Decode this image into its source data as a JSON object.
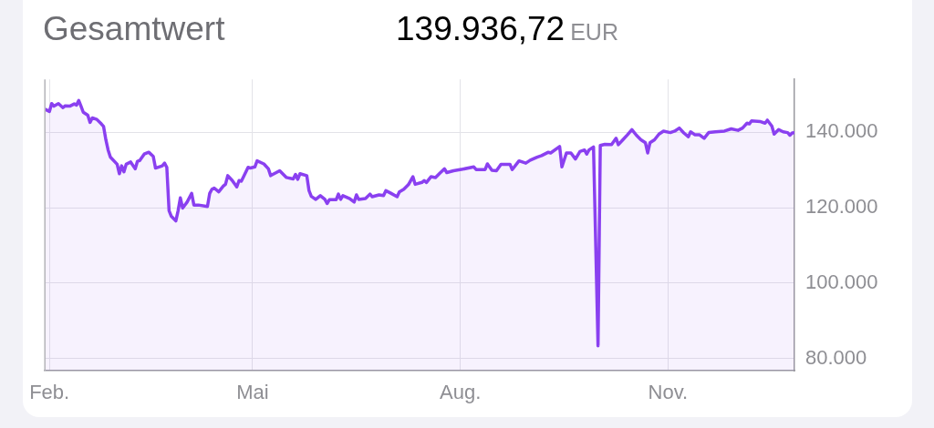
{
  "chart_data": {
    "type": "area",
    "title": "Gesamtwert",
    "subtitle": "139.936,72 EUR",
    "x": [
      "--01-30",
      "--02-01",
      "--02-02",
      "--02-03",
      "--02-05",
      "--02-07",
      "--02-08",
      "--02-10",
      "--02-12",
      "--02-13",
      "--02-14",
      "--02-15",
      "--02-16",
      "--02-18",
      "--02-19",
      "--02-20",
      "--02-22",
      "--02-24",
      "--02-25",
      "--02-26",
      "--02-27",
      "--02-28",
      "--03-02",
      "--03-03",
      "--03-04",
      "--03-05",
      "--03-06",
      "--03-08",
      "--03-10",
      "--03-11",
      "--03-12",
      "--03-14",
      "--03-16",
      "--03-18",
      "--03-19",
      "--03-22",
      "--03-23",
      "--03-24",
      "--03-25",
      "--03-26",
      "--03-28",
      "--03-29",
      "--03-30",
      "--03-31",
      "--04-02",
      "--04-04",
      "--04-05",
      "--04-07",
      "--04-11",
      "--04-12",
      "--04-13",
      "--04-14",
      "--04-16",
      "--04-18",
      "--04-19",
      "--04-20",
      "--04-22",
      "--04-24",
      "--04-25",
      "--04-26",
      "--04-27",
      "--04-29",
      "--04-30",
      "--05-02",
      "--05-03",
      "--05-06",
      "--05-08",
      "--05-09",
      "--05-13",
      "--05-16",
      "--05-19",
      "--05-20",
      "--05-21",
      "--05-22",
      "--05-25",
      "--05-26",
      "--05-27",
      "--05-29",
      "--05-31",
      "--06-02",
      "--06-03",
      "--06-04",
      "--06-07",
      "--06-08",
      "--06-09",
      "--06-10",
      "--06-13",
      "--06-15",
      "--06-16",
      "--06-17",
      "--06-20",
      "--06-22",
      "--06-23",
      "--06-26",
      "--06-28",
      "--06-29",
      "--07-01",
      "--07-04",
      "--07-05",
      "--07-07",
      "--07-09",
      "--07-11",
      "--07-12",
      "--07-15",
      "--07-16",
      "--07-17",
      "--07-19",
      "--07-21",
      "--07-23",
      "--07-25",
      "--07-26",
      "--07-29",
      "--08-02",
      "--08-07",
      "--08-08",
      "--08-12",
      "--08-13",
      "--08-15",
      "--08-17",
      "--08-19",
      "--08-23",
      "--08-24",
      "--08-27",
      "--08-30",
      "--09-01",
      "--09-04",
      "--09-06",
      "--09-09",
      "--09-10",
      "--09-14",
      "--09-15",
      "--09-17",
      "--09-19",
      "--09-21",
      "--09-23",
      "--09-25",
      "--09-26",
      "--09-27",
      "--09-29",
      "--10-01",
      "--10-02",
      "--10-04",
      "--10-07",
      "--10-09",
      "--10-10",
      "--10-12",
      "--10-14",
      "--10-16",
      "--10-18",
      "--10-20",
      "--10-22",
      "--10-23",
      "--10-24",
      "--10-26",
      "--10-28",
      "--10-30",
      "--11-02",
      "--11-04",
      "--11-06",
      "--11-08",
      "--11-10",
      "--11-11",
      "--11-13",
      "--11-15",
      "--11-17",
      "--11-19",
      "--11-22",
      "--11-26",
      "--11-29",
      "--12-02",
      "--12-04",
      "--12-06",
      "--12-07",
      "--12-08",
      "--12-12",
      "--12-14",
      "--12-15",
      "--12-17",
      "--12-18",
      "--12-20",
      "--12-22",
      "--12-24",
      "--12-25",
      "--12-26",
      "--12-27"
    ],
    "values": [
      146100,
      145500,
      147600,
      146900,
      147600,
      146500,
      147000,
      146900,
      147500,
      147200,
      148400,
      146900,
      145300,
      144500,
      142600,
      143800,
      143400,
      142200,
      141500,
      138000,
      135300,
      133400,
      131500,
      129000,
      131100,
      129500,
      131500,
      132100,
      130300,
      132300,
      132500,
      134200,
      134700,
      133600,
      130500,
      131100,
      131800,
      130700,
      119200,
      117700,
      116500,
      119200,
      122600,
      119900,
      121500,
      123800,
      120700,
      120700,
      120300,
      123800,
      124900,
      125200,
      124200,
      125700,
      126200,
      128500,
      127200,
      125500,
      127200,
      127000,
      128200,
      130700,
      130500,
      130800,
      132400,
      131600,
      130300,
      128500,
      129800,
      128000,
      127600,
      128800,
      127500,
      129000,
      128500,
      124500,
      123000,
      122200,
      123200,
      122200,
      121100,
      122100,
      122100,
      123600,
      122200,
      123200,
      122400,
      121500,
      123400,
      122200,
      122400,
      123600,
      122900,
      123400,
      123200,
      124500,
      123900,
      122900,
      124200,
      124900,
      126100,
      128200,
      126200,
      126700,
      127200,
      126700,
      128200,
      128000,
      129200,
      130300,
      129300,
      129800,
      130200,
      130800,
      130100,
      130100,
      131600,
      129900,
      129800,
      131500,
      131500,
      130100,
      132400,
      131800,
      132600,
      133400,
      133800,
      134700,
      134500,
      136200,
      130800,
      134500,
      134500,
      132900,
      134900,
      135300,
      134200,
      135300,
      136100,
      83400,
      136500,
      136800,
      136700,
      138400,
      136700,
      138000,
      139300,
      140700,
      139200,
      138000,
      137200,
      134500,
      137200,
      138000,
      139500,
      140300,
      139900,
      140300,
      141100,
      139800,
      138800,
      140100,
      139300,
      139300,
      138400,
      139900,
      140100,
      140300,
      140900,
      140500,
      141100,
      142400,
      142200,
      143000,
      142800,
      142400,
      143200,
      141600,
      139500,
      140700,
      140100,
      139900,
      139200,
      139800,
      139900
    ],
    "color": "#8a40f0",
    "marker": "none",
    "line_style": "solid",
    "xlim": [
      "--01-30",
      "--12-27"
    ],
    "xticks": [
      {
        "value": "--02-01",
        "label": "Feb."
      },
      {
        "value": "--05-01",
        "label": "Mai"
      },
      {
        "value": "--08-01",
        "label": "Aug."
      },
      {
        "value": "--11-01",
        "label": "Nov."
      }
    ],
    "ylim": [
      76800,
      154000
    ],
    "yticks": [
      {
        "value": 80000,
        "label": "80.000"
      },
      {
        "value": 100000,
        "label": "100.000"
      },
      {
        "value": 120000,
        "label": "120.000"
      },
      {
        "value": 140000,
        "label": "140.000"
      }
    ],
    "grid": true
  }
}
